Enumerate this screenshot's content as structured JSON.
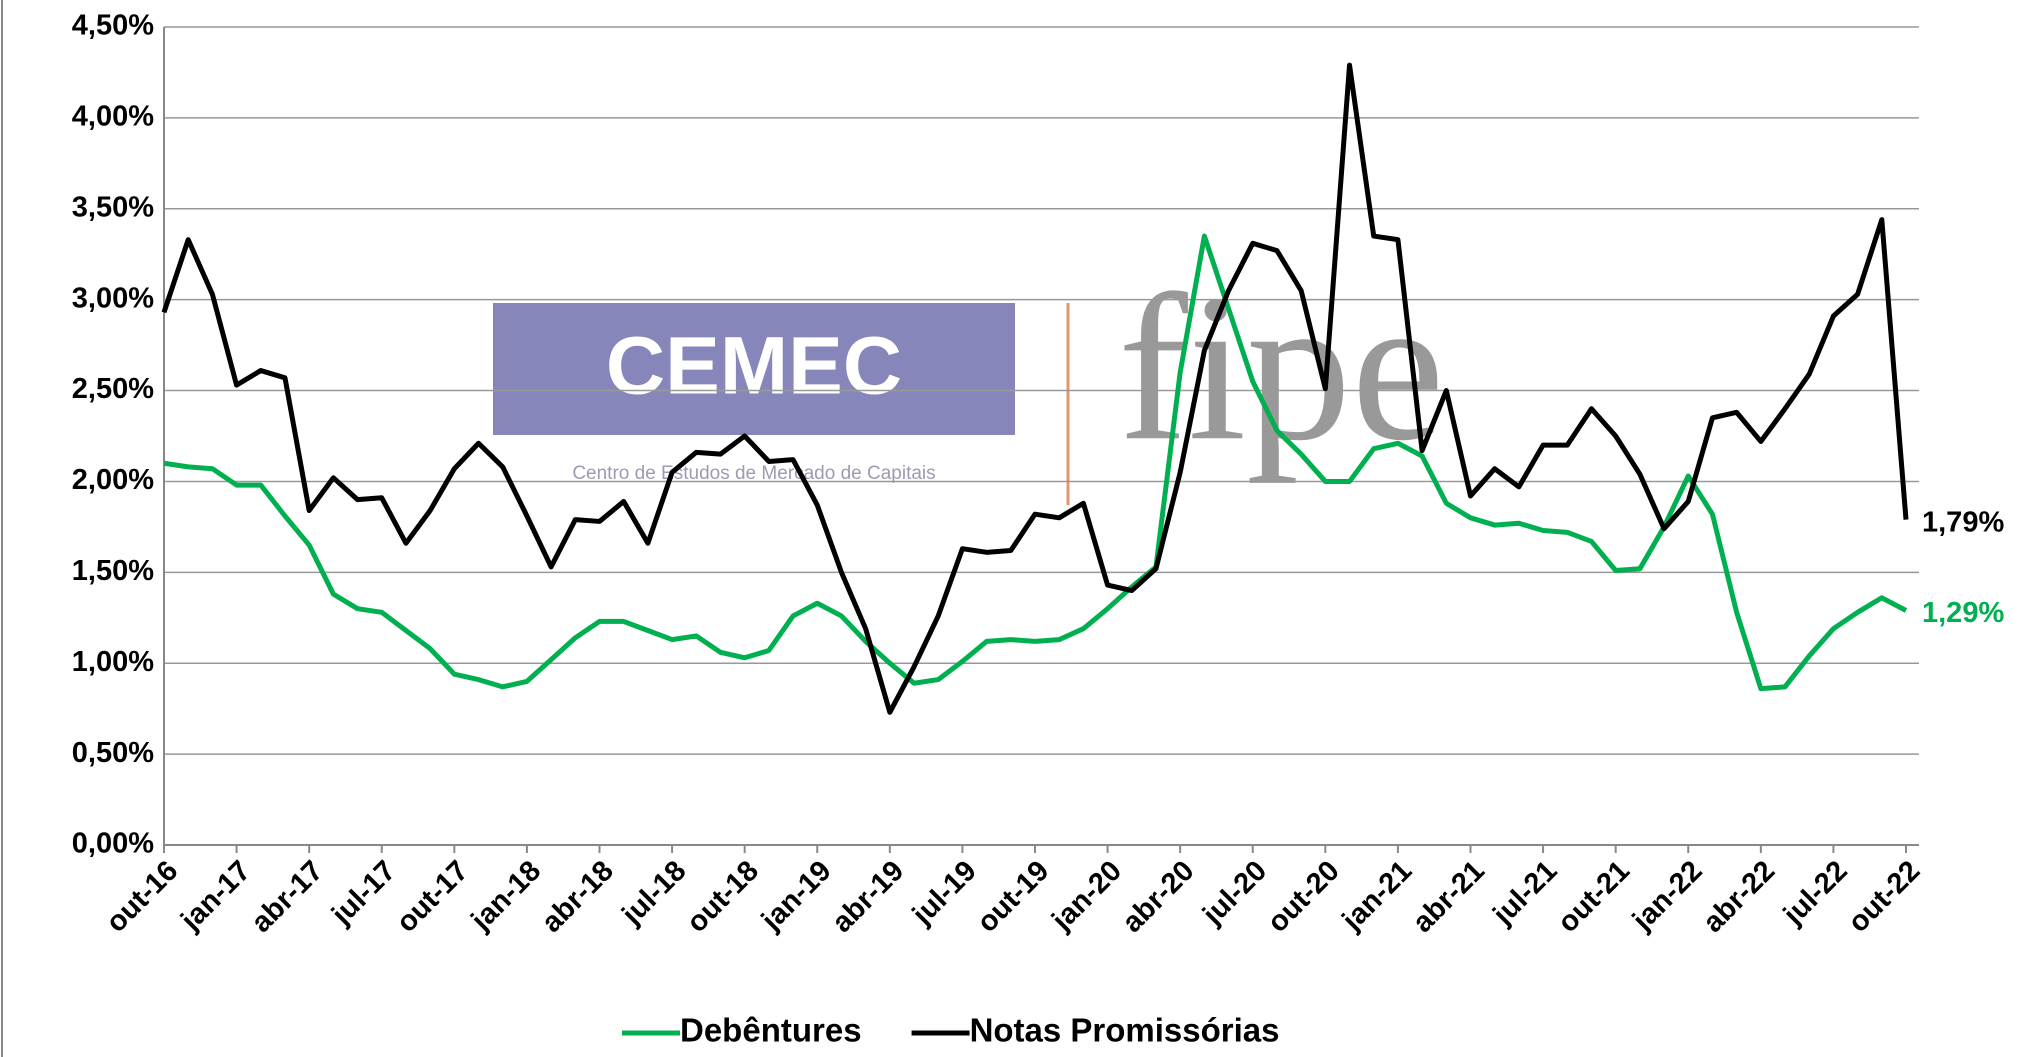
{
  "chart_data": {
    "type": "line",
    "categories": [
      "out-16",
      null,
      null,
      "jan-17",
      null,
      null,
      "abr-17",
      null,
      null,
      "jul-17",
      null,
      null,
      "out-17",
      null,
      null,
      "jan-18",
      null,
      null,
      "abr-18",
      null,
      null,
      "jul-18",
      null,
      null,
      "out-18",
      null,
      null,
      "jan-19",
      null,
      null,
      "abr-19",
      null,
      null,
      "jul-19",
      null,
      null,
      "out-19",
      null,
      null,
      "jan-20",
      null,
      null,
      "abr-20",
      null,
      null,
      "jul-20",
      null,
      null,
      "out-20",
      null,
      null,
      "jan-21",
      null,
      null,
      "abr-21",
      null,
      null,
      "jul-21",
      null,
      null,
      "out-21",
      null,
      null,
      "jan-22",
      null,
      null,
      "abr-22",
      null,
      null,
      "jul-22",
      null,
      null,
      "out-22"
    ],
    "series": [
      {
        "name": "Debêntures",
        "color": "#00b050",
        "values": [
          2.1,
          2.08,
          2.07,
          1.98,
          1.98,
          1.81,
          1.65,
          1.38,
          1.3,
          1.28,
          1.18,
          1.08,
          0.94,
          0.91,
          0.87,
          0.9,
          1.02,
          1.14,
          1.23,
          1.23,
          1.18,
          1.13,
          1.15,
          1.06,
          1.03,
          1.07,
          1.26,
          1.33,
          1.26,
          1.12,
          1.0,
          0.89,
          0.91,
          1.01,
          1.12,
          1.13,
          1.12,
          1.13,
          1.19,
          1.3,
          1.42,
          1.53,
          2.6,
          3.35,
          2.95,
          2.55,
          2.28,
          2.15,
          2.0,
          2.0,
          2.18,
          2.21,
          2.14,
          1.88,
          1.8,
          1.76,
          1.77,
          1.73,
          1.72,
          1.67,
          1.51,
          1.52,
          1.75,
          2.03,
          1.82,
          1.28,
          0.86,
          0.87,
          1.04,
          1.19,
          1.28,
          1.36,
          1.29
        ],
        "value_labels": [
          null,
          null,
          null,
          null,
          null,
          null,
          null,
          null,
          null,
          null,
          null,
          null,
          null,
          null,
          null,
          null,
          null,
          null,
          null,
          null,
          null,
          null,
          null,
          null,
          null,
          null,
          null,
          null,
          null,
          null,
          null,
          null,
          null,
          null,
          null,
          null,
          null,
          null,
          null,
          null,
          null,
          null,
          null,
          null,
          null,
          null,
          null,
          null,
          null,
          null,
          null,
          null,
          null,
          null,
          null,
          null,
          null,
          null,
          null,
          null,
          null,
          null,
          null,
          null,
          null,
          null,
          null,
          null,
          null,
          null,
          null,
          null,
          "1,29%"
        ]
      },
      {
        "name": "Notas Promissórias",
        "color": "#000000",
        "values": [
          2.93,
          3.33,
          3.03,
          2.53,
          2.61,
          2.57,
          1.84,
          2.02,
          1.9,
          1.91,
          1.66,
          1.84,
          2.07,
          2.21,
          2.08,
          1.81,
          1.53,
          1.79,
          1.78,
          1.89,
          1.66,
          2.05,
          2.16,
          2.15,
          2.25,
          2.11,
          2.12,
          1.87,
          1.5,
          1.19,
          0.73,
          0.98,
          1.26,
          1.63,
          1.61,
          1.62,
          1.82,
          1.8,
          1.88,
          1.43,
          1.4,
          1.52,
          2.05,
          2.72,
          3.05,
          3.31,
          3.27,
          3.05,
          2.51,
          4.29,
          3.35,
          3.33,
          2.17,
          2.5,
          1.92,
          2.07,
          1.97,
          2.2,
          2.2,
          2.4,
          2.25,
          2.04,
          1.74,
          1.89,
          2.35,
          2.38,
          2.22,
          2.4,
          2.59,
          2.91,
          3.03,
          3.44,
          1.79
        ],
        "value_labels": [
          null,
          null,
          null,
          null,
          null,
          null,
          null,
          null,
          null,
          null,
          null,
          null,
          null,
          null,
          null,
          null,
          null,
          null,
          null,
          null,
          null,
          null,
          null,
          null,
          null,
          null,
          null,
          null,
          null,
          null,
          null,
          null,
          null,
          null,
          null,
          null,
          null,
          null,
          null,
          null,
          null,
          null,
          null,
          null,
          null,
          null,
          null,
          null,
          null,
          null,
          null,
          null,
          null,
          null,
          null,
          null,
          null,
          null,
          null,
          null,
          null,
          null,
          null,
          null,
          null,
          null,
          null,
          null,
          null,
          null,
          null,
          null,
          "1,79%"
        ]
      }
    ],
    "ylim": [
      0,
      4.5
    ],
    "yticks": [
      {
        "value": 0,
        "label": "0,00%"
      },
      {
        "value": 0.5,
        "label": "0,50%"
      },
      {
        "value": 1,
        "label": "1,00%"
      },
      {
        "value": 1.5,
        "label": "1,50%"
      },
      {
        "value": 2,
        "label": "2,00%"
      },
      {
        "value": 2.5,
        "label": "2,50%"
      },
      {
        "value": 3,
        "label": "3,00%"
      },
      {
        "value": 3.5,
        "label": "3,50%"
      },
      {
        "value": 4,
        "label": "4,00%"
      },
      {
        "value": 4.5,
        "label": "4,50%"
      }
    ],
    "grid": true,
    "legend": "bottom",
    "watermark": {
      "name": "CEMEC",
      "subtitle": "Centro de Estudos de Mercado de Capitais",
      "partner": "fipe"
    }
  }
}
